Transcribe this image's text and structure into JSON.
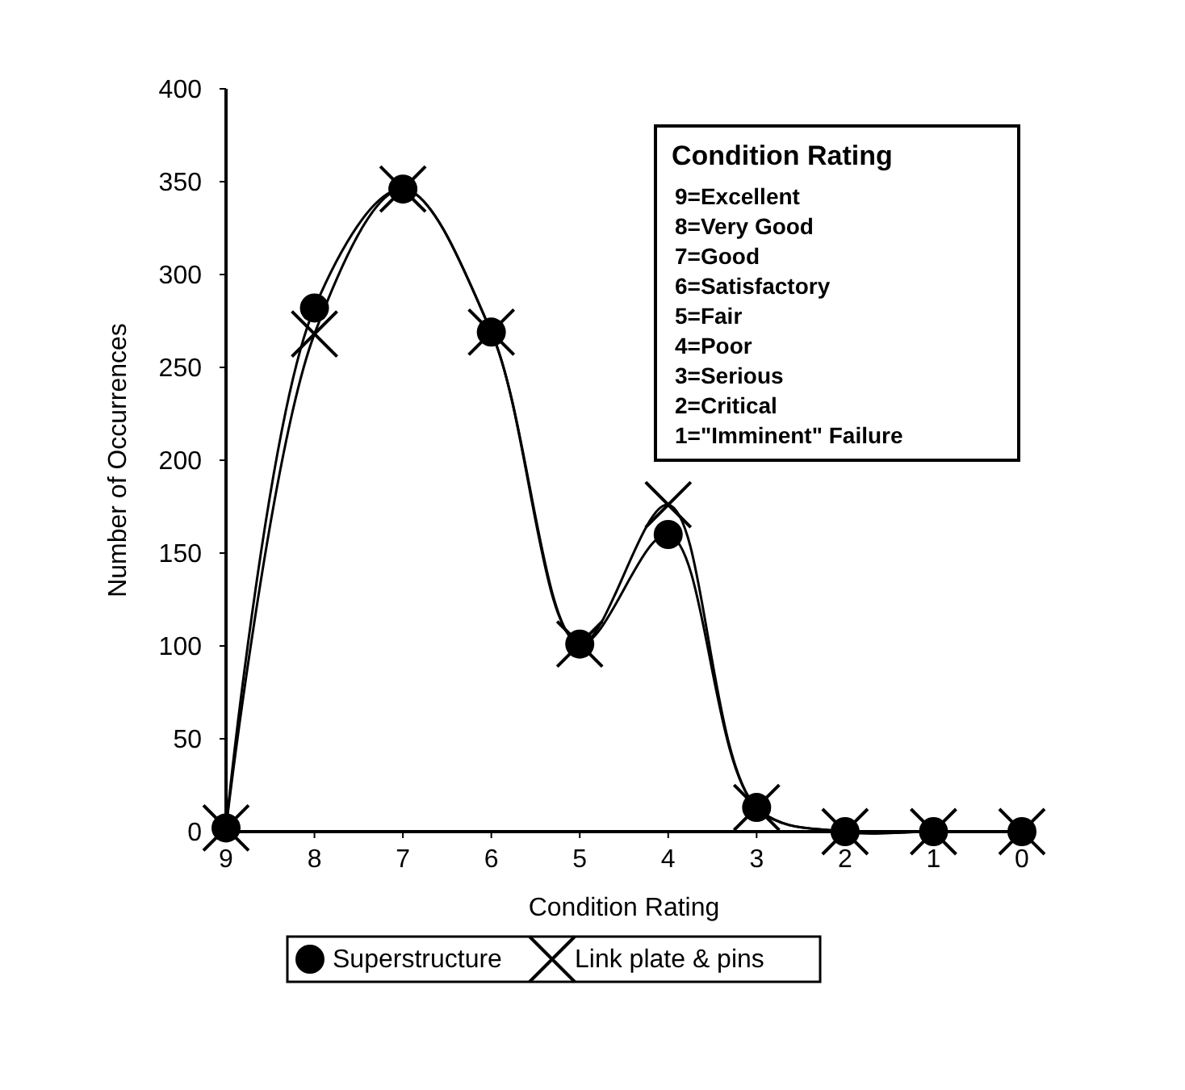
{
  "chart_data": {
    "type": "line",
    "xlabel": "Condition Rating",
    "ylabel": "Number of Occurrences",
    "x": [
      9,
      8,
      7,
      6,
      5,
      4,
      3,
      2,
      1,
      0
    ],
    "xlim": [
      9,
      0
    ],
    "xticks": [
      9,
      8,
      7,
      6,
      5,
      4,
      3,
      2,
      1,
      0
    ],
    "ylim": [
      0,
      400
    ],
    "yticks": [
      0,
      50,
      100,
      150,
      200,
      250,
      300,
      350,
      400
    ],
    "series": [
      {
        "name": "Superstructure",
        "color": "#000000",
        "marker": "circle",
        "values": [
          2,
          282,
          346,
          269,
          101,
          160,
          13,
          0,
          0,
          0
        ]
      },
      {
        "name": "Link plate & pins",
        "color": "#000000",
        "marker": "cross",
        "values": [
          2,
          268,
          346,
          269,
          101,
          176,
          13,
          0,
          0,
          0
        ]
      }
    ],
    "annotations": [
      "Condition Rating",
      "9=Excellent",
      "8=Very Good",
      "7=Good",
      "6=Satisfactory",
      "5=Fair",
      "4=Poor",
      "3=Serious",
      "2=Critical",
      "1=\"Imminent\" Failure"
    ],
    "legend": "bottom",
    "grid": false,
    "line_style": "solid"
  }
}
